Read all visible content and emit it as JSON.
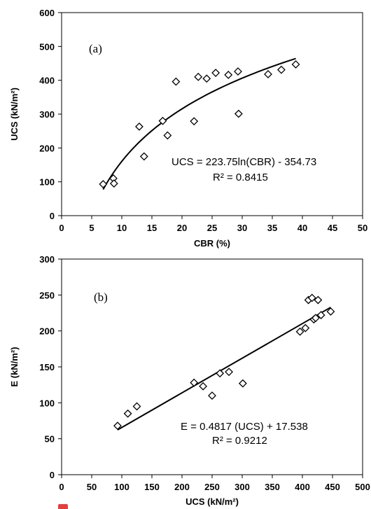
{
  "chart_data": [
    {
      "type": "scatter",
      "panel_label": "(a)",
      "xlabel": "CBR (%)",
      "ylabel": "UCS (kN/m²)",
      "xlim": [
        0,
        50
      ],
      "ylim": [
        0,
        600
      ],
      "xticks": [
        0,
        5,
        10,
        15,
        20,
        25,
        30,
        35,
        40,
        45,
        50
      ],
      "yticks": [
        0,
        100,
        200,
        300,
        400,
        500,
        600
      ],
      "x_tick_labels": [
        "0",
        "5",
        "10",
        "15",
        "20",
        "25",
        "30",
        "35",
        "40",
        "45",
        "50"
      ],
      "y_tick_labels": [
        "0",
        "100",
        "200",
        "300",
        "400",
        "500",
        "600"
      ],
      "grid": false,
      "marker": "open-diamond",
      "points": [
        {
          "x": 6.9,
          "y": 93
        },
        {
          "x": 8.6,
          "y": 110
        },
        {
          "x": 8.7,
          "y": 95
        },
        {
          "x": 12.9,
          "y": 263
        },
        {
          "x": 13.7,
          "y": 175
        },
        {
          "x": 16.8,
          "y": 280
        },
        {
          "x": 17.6,
          "y": 237
        },
        {
          "x": 19.0,
          "y": 396
        },
        {
          "x": 22.0,
          "y": 279
        },
        {
          "x": 22.7,
          "y": 410
        },
        {
          "x": 24.1,
          "y": 405
        },
        {
          "x": 25.6,
          "y": 422
        },
        {
          "x": 27.7,
          "y": 416
        },
        {
          "x": 29.3,
          "y": 426
        },
        {
          "x": 29.4,
          "y": 301
        },
        {
          "x": 34.3,
          "y": 418
        },
        {
          "x": 36.5,
          "y": 431
        },
        {
          "x": 38.9,
          "y": 447
        }
      ],
      "trendline": {
        "type": "logarithmic",
        "a": 223.75,
        "b": -354.73,
        "x_range": [
          6.9,
          38.9
        ]
      },
      "equation": "UCS = 223.75ln(CBR) - 354.73",
      "r_squared": "R² = 0.8415"
    },
    {
      "type": "scatter",
      "panel_label": "(b)",
      "xlabel": "UCS (kN/m²)",
      "ylabel": "E  (kN/m²)",
      "xlim": [
        0,
        500
      ],
      "ylim": [
        0,
        300
      ],
      "xticks": [
        0,
        50,
        100,
        150,
        200,
        250,
        300,
        350,
        400,
        450,
        500
      ],
      "yticks": [
        0,
        50,
        100,
        150,
        200,
        250,
        300
      ],
      "x_tick_labels": [
        "0",
        "50",
        "100",
        "150",
        "200",
        "250",
        "300",
        "350",
        "400",
        "450",
        "500"
      ],
      "y_tick_labels": [
        "0",
        "50",
        "100",
        "150",
        "200",
        "250",
        "300"
      ],
      "grid": false,
      "marker": "open-diamond",
      "points": [
        {
          "x": 93,
          "y": 68
        },
        {
          "x": 110,
          "y": 85
        },
        {
          "x": 125,
          "y": 95
        },
        {
          "x": 220,
          "y": 128
        },
        {
          "x": 235,
          "y": 123
        },
        {
          "x": 250,
          "y": 110
        },
        {
          "x": 263,
          "y": 141
        },
        {
          "x": 278,
          "y": 143
        },
        {
          "x": 301,
          "y": 127
        },
        {
          "x": 396,
          "y": 199
        },
        {
          "x": 405,
          "y": 204
        },
        {
          "x": 410,
          "y": 243
        },
        {
          "x": 416,
          "y": 246
        },
        {
          "x": 419,
          "y": 216
        },
        {
          "x": 422,
          "y": 218
        },
        {
          "x": 426,
          "y": 243
        },
        {
          "x": 431,
          "y": 222
        },
        {
          "x": 447,
          "y": 227
        }
      ],
      "trendline": {
        "type": "linear",
        "slope": 0.4817,
        "intercept": 17.538,
        "x_range": [
          93,
          447
        ]
      },
      "equation": "E = 0.4817 (UCS) + 17.538",
      "r_squared": "R² = 0.9212"
    }
  ]
}
